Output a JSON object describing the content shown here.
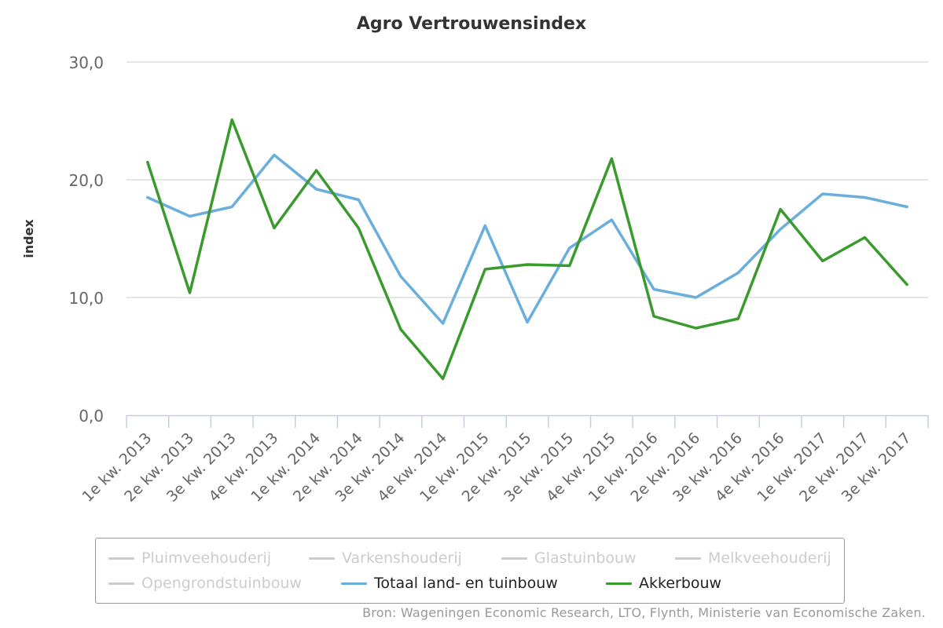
{
  "chart_data": {
    "type": "line",
    "title": "Agro Vertrouwensindex",
    "ylabel": "index",
    "xlabel": "",
    "ylim": [
      0,
      30
    ],
    "yticks": [
      "0,0",
      "10,0",
      "20,0",
      "30,0"
    ],
    "categories": [
      "1e kw. 2013",
      "2e kw. 2013",
      "3e kw. 2013",
      "4e kw. 2013",
      "1e kw. 2014",
      "2e kw. 2014",
      "3e kw. 2014",
      "4e kw. 2014",
      "1e kw. 2015",
      "2e kw. 2015",
      "3e kw. 2015",
      "4e kw. 2015",
      "1e kw. 2016",
      "2e kw. 2016",
      "3e kw. 2016",
      "4e kw. 2016",
      "1e kw. 2017",
      "2e kw. 2017",
      "3e kw. 2017"
    ],
    "series": [
      {
        "name": "Totaal land- en tuinbouw",
        "color": "#6aaedb",
        "values": [
          18.5,
          16.9,
          17.7,
          22.1,
          19.2,
          18.3,
          11.8,
          7.8,
          16.1,
          7.9,
          14.2,
          16.6,
          10.7,
          10.0,
          12.1,
          15.8,
          18.8,
          18.5,
          17.7
        ]
      },
      {
        "name": "Akkerbouw",
        "color": "#3a9a2e",
        "values": [
          21.5,
          10.4,
          25.1,
          15.9,
          20.8,
          15.9,
          7.3,
          3.1,
          12.4,
          12.8,
          12.7,
          21.8,
          8.4,
          7.4,
          8.2,
          17.5,
          13.1,
          15.1,
          11.1
        ]
      }
    ],
    "grid": true,
    "legend_position": "bottom"
  },
  "legend": {
    "items": [
      {
        "label": "Pluimveehouderij",
        "color": "#cccccc",
        "active": false
      },
      {
        "label": "Varkenshouderij",
        "color": "#cccccc",
        "active": false
      },
      {
        "label": "Glastuinbouw",
        "color": "#cccccc",
        "active": false
      },
      {
        "label": "Melkveehouderij",
        "color": "#cccccc",
        "active": false
      },
      {
        "label": "Opengrondstuinbouw",
        "color": "#cccccc",
        "active": false
      },
      {
        "label": "Totaal land- en tuinbouw",
        "color": "#6aaedb",
        "active": true
      },
      {
        "label": "Akkerbouw",
        "color": "#3a9a2e",
        "active": true
      }
    ]
  },
  "source": "Bron: Wageningen Economic Research, LTO, Flynth, Ministerie van Economische Zaken."
}
